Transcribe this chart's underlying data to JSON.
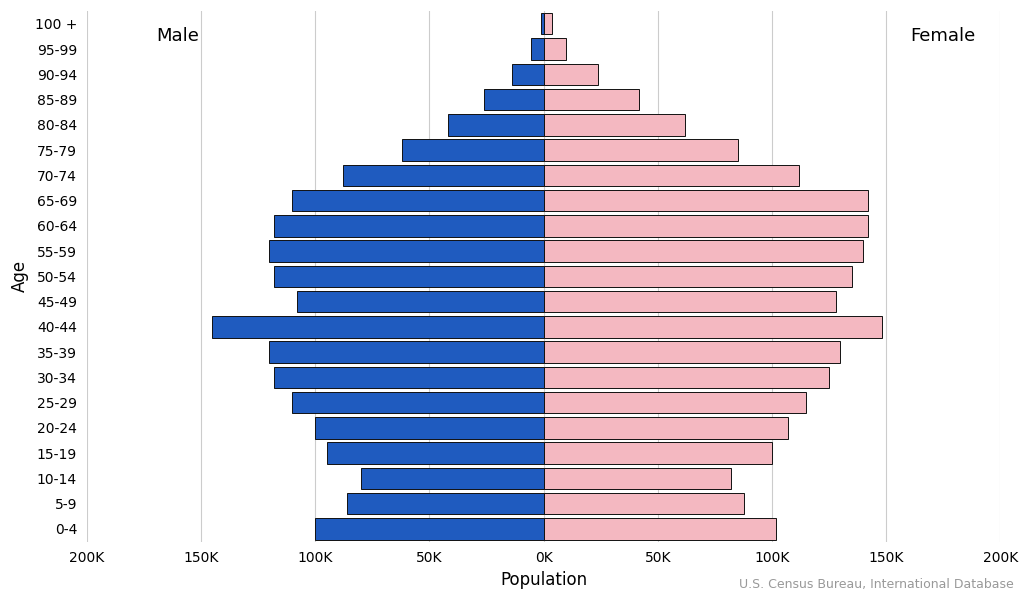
{
  "age_groups": [
    "0-4",
    "5-9",
    "10-14",
    "15-19",
    "20-24",
    "25-29",
    "30-34",
    "35-39",
    "40-44",
    "45-49",
    "50-54",
    "55-59",
    "60-64",
    "65-69",
    "70-74",
    "75-79",
    "80-84",
    "85-89",
    "90-94",
    "95-99",
    "100 +"
  ],
  "male": [
    100000,
    86000,
    80000,
    95000,
    100000,
    110000,
    118000,
    120000,
    145000,
    108000,
    118000,
    120000,
    118000,
    110000,
    88000,
    62000,
    42000,
    26000,
    14000,
    5500,
    1200
  ],
  "female": [
    102000,
    88000,
    82000,
    100000,
    107000,
    115000,
    125000,
    130000,
    148000,
    128000,
    135000,
    140000,
    142000,
    142000,
    112000,
    85000,
    62000,
    42000,
    24000,
    10000,
    3500
  ],
  "male_color": "#1f5bbf",
  "female_color": "#f4b8c1",
  "bar_edgecolor": "#111111",
  "bar_linewidth": 0.7,
  "background_color": "#ffffff",
  "grid_color": "#cccccc",
  "xlabel": "Population",
  "ylabel": "Age",
  "male_label": "Male",
  "female_label": "Female",
  "source_text": "U.S. Census Bureau, International Database",
  "xlim": 200000,
  "xtick_step": 50000,
  "label_fontsize": 12,
  "tick_fontsize": 10,
  "gender_label_fontsize": 13,
  "annotation_fontsize": 9
}
